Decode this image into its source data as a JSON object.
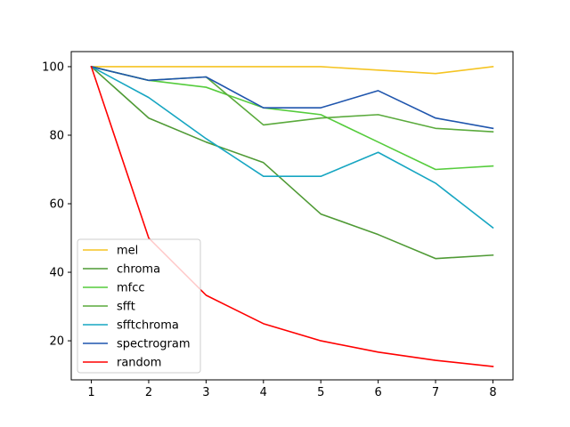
{
  "chart_data": {
    "type": "line",
    "title": "",
    "xlabel": "",
    "ylabel": "",
    "x": [
      1,
      2,
      3,
      4,
      5,
      6,
      7,
      8
    ],
    "xticks": [
      1,
      2,
      3,
      4,
      5,
      6,
      7,
      8
    ],
    "yticks": [
      20,
      40,
      60,
      80,
      100
    ],
    "xlim": [
      0.65,
      8.35
    ],
    "ylim": [
      8.6,
      104.4
    ],
    "grid": false,
    "legend_position": "lower-left",
    "series": [
      {
        "name": "mel",
        "color": "#f5c422",
        "values": [
          100,
          100,
          100,
          100,
          100,
          99,
          98,
          100
        ]
      },
      {
        "name": "chroma",
        "color": "#4f9a35",
        "values": [
          100,
          85,
          78,
          72,
          57,
          51,
          44,
          45
        ]
      },
      {
        "name": "mfcc",
        "color": "#55cc3c",
        "values": [
          100,
          96,
          94,
          88,
          86,
          78,
          70,
          71
        ]
      },
      {
        "name": "sfft",
        "color": "#5aaa3c",
        "values": [
          100,
          96,
          97,
          83,
          85,
          86,
          82,
          81
        ]
      },
      {
        "name": "sfftchroma",
        "color": "#17a6c2",
        "values": [
          100,
          91,
          79,
          68,
          68,
          75,
          66,
          53
        ]
      },
      {
        "name": "spectrogram",
        "color": "#1f55ad",
        "values": [
          100,
          96,
          97,
          88,
          88,
          93,
          85,
          82
        ]
      },
      {
        "name": "random",
        "color": "#ff0000",
        "values": [
          100,
          50,
          33.3,
          25,
          20,
          16.7,
          14.3,
          12.5
        ]
      }
    ]
  }
}
